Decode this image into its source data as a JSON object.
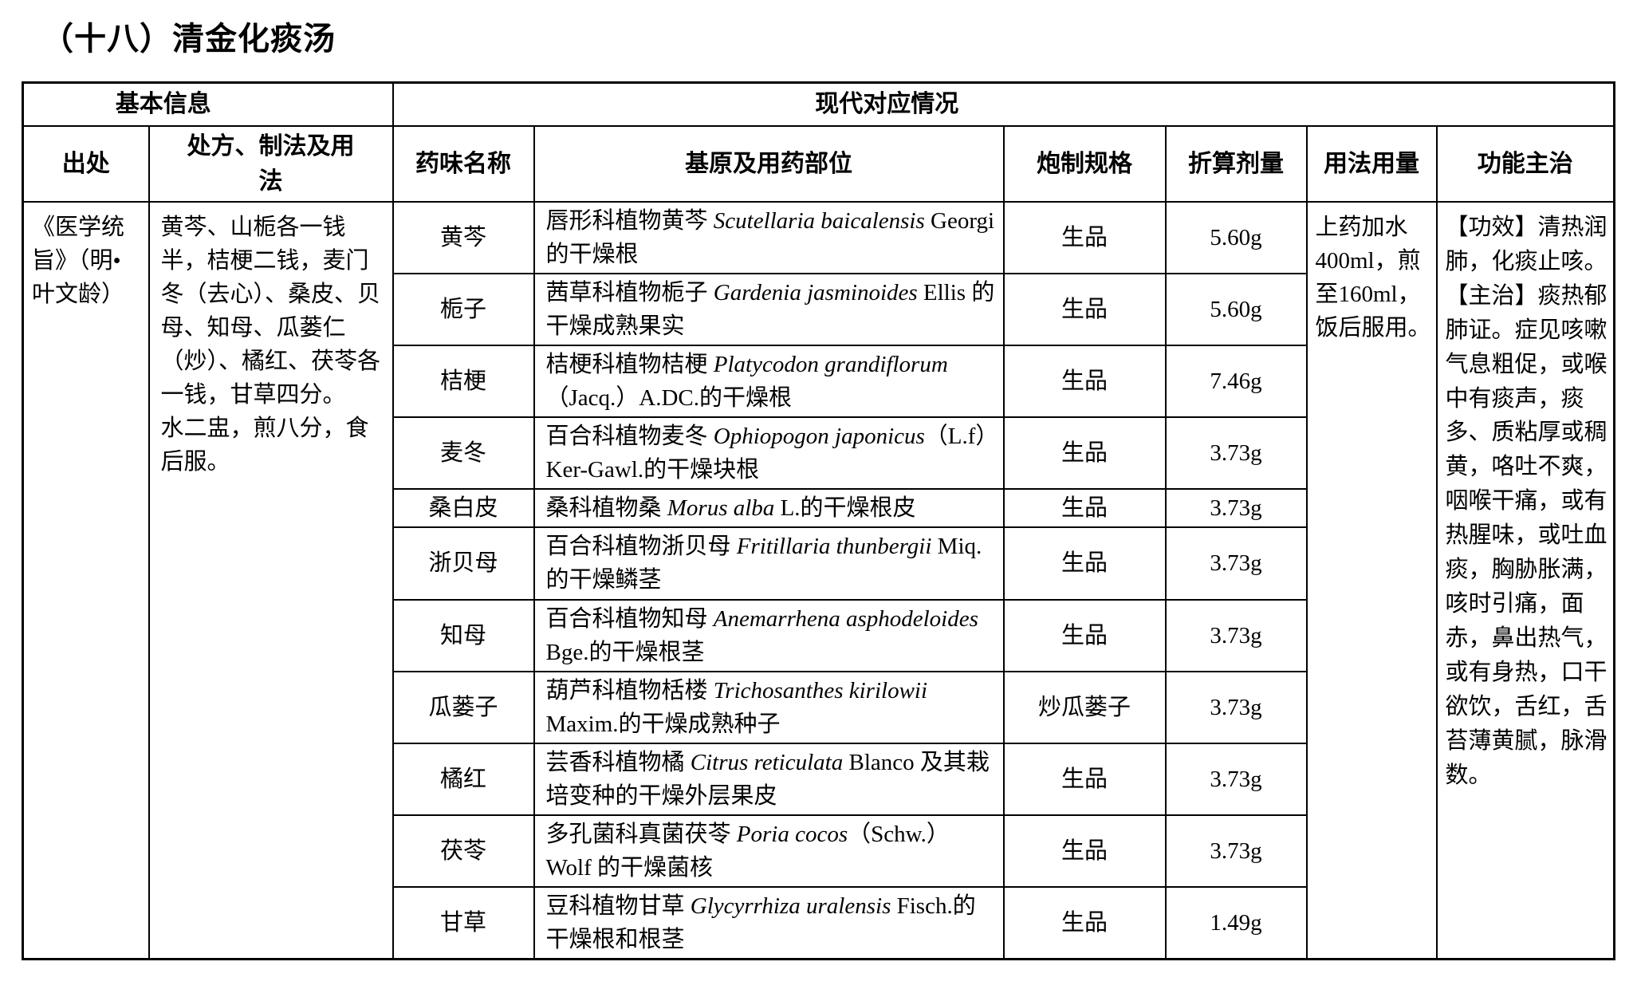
{
  "title": "（十八）清金化痰汤",
  "colors": {
    "ink": "#000000",
    "background": "#ffffff",
    "border": "#000000"
  },
  "table": {
    "group_headers": {
      "basic": "基本信息",
      "modern": "现代对应情况"
    },
    "columns": [
      "出处",
      "处方、制法及用法",
      "药味名称",
      "基原及用药部位",
      "炮制规格",
      "折算剂量",
      "用法用量",
      "功能主治"
    ],
    "source": "《医学统旨》（明•叶文龄）",
    "prescription_lines": [
      "黄芩、山栀各一钱半，桔梗二钱，麦门冬（去心）、桑皮、贝母、知母、瓜蒌仁（炒）、橘红、茯苓各一钱，甘草四分。",
      "水二盅，煎八分，食后服。"
    ],
    "usage": "上药加水400ml，煎至160ml，饭后服用。",
    "efficacy_lines": [
      "【功效】清热润肺，化痰止咳。",
      "【主治】痰热郁肺证。症见咳嗽气息粗促，或喉中有痰声，痰多、质粘厚或稠黄，咯吐不爽，咽喉干痛，或有热腥味，或吐血痰，胸胁胀满，咳时引痛，面赤，鼻出热气，或有身热，口干欲饮，舌红，舌苔薄黄腻，脉滑数。"
    ],
    "herbs": [
      {
        "name": "黄芩",
        "origin": [
          {
            "t": "唇形科植物黄芩 "
          },
          {
            "t": "Scutellaria baicalensis",
            "i": true
          },
          {
            "t": " Georgi 的干燥根"
          }
        ],
        "spec": "生品",
        "dose": "5.60g"
      },
      {
        "name": "栀子",
        "origin": [
          {
            "t": "茜草科植物栀子 "
          },
          {
            "t": "Gardenia jasminoides",
            "i": true
          },
          {
            "t": " Ellis 的干燥成熟果实"
          }
        ],
        "spec": "生品",
        "dose": "5.60g"
      },
      {
        "name": "桔梗",
        "origin": [
          {
            "t": "桔梗科植物桔梗 "
          },
          {
            "t": "Platycodon grandiflorum",
            "i": true
          },
          {
            "t": "（Jacq.）A.DC.的干燥根"
          }
        ],
        "spec": "生品",
        "dose": "7.46g"
      },
      {
        "name": "麦冬",
        "origin": [
          {
            "t": "百合科植物麦冬 "
          },
          {
            "t": "Ophiopogon japonicus",
            "i": true
          },
          {
            "t": "（L.f）Ker-Gawl.的干燥块根"
          }
        ],
        "spec": "生品",
        "dose": "3.73g"
      },
      {
        "name": "桑白皮",
        "origin": [
          {
            "t": "桑科植物桑 "
          },
          {
            "t": "Morus alba",
            "i": true
          },
          {
            "t": " L.的干燥根皮"
          }
        ],
        "spec": "生品",
        "dose": "3.73g"
      },
      {
        "name": "浙贝母",
        "origin": [
          {
            "t": "百合科植物浙贝母 "
          },
          {
            "t": "Fritillaria thunbergii",
            "i": true
          },
          {
            "t": " Miq.的干燥鳞茎"
          }
        ],
        "spec": "生品",
        "dose": "3.73g"
      },
      {
        "name": "知母",
        "origin": [
          {
            "t": "百合科植物知母 "
          },
          {
            "t": "Anemarrhena asphodeloides",
            "i": true
          },
          {
            "t": " Bge.的干燥根茎"
          }
        ],
        "spec": "生品",
        "dose": "3.73g"
      },
      {
        "name": "瓜蒌子",
        "origin": [
          {
            "t": "葫芦科植物栝楼 "
          },
          {
            "t": "Trichosanthes kirilowii",
            "i": true
          },
          {
            "t": " Maxim.的干燥成熟种子"
          }
        ],
        "spec": "炒瓜蒌子",
        "dose": "3.73g"
      },
      {
        "name": "橘红",
        "origin": [
          {
            "t": "芸香科植物橘 "
          },
          {
            "t": "Citrus reticulata",
            "i": true
          },
          {
            "t": " Blanco 及其栽培变种的干燥外层果皮"
          }
        ],
        "spec": "生品",
        "dose": "3.73g"
      },
      {
        "name": "茯苓",
        "origin": [
          {
            "t": "多孔菌科真菌茯苓 "
          },
          {
            "t": "Poria cocos",
            "i": true
          },
          {
            "t": "（Schw.）Wolf 的干燥菌核"
          }
        ],
        "spec": "生品",
        "dose": "3.73g"
      },
      {
        "name": "甘草",
        "origin": [
          {
            "t": "豆科植物甘草 "
          },
          {
            "t": "Glycyrrhiza uralensis",
            "i": true
          },
          {
            "t": " Fisch.的干燥根和根茎"
          }
        ],
        "spec": "生品",
        "dose": "1.49g"
      }
    ]
  }
}
